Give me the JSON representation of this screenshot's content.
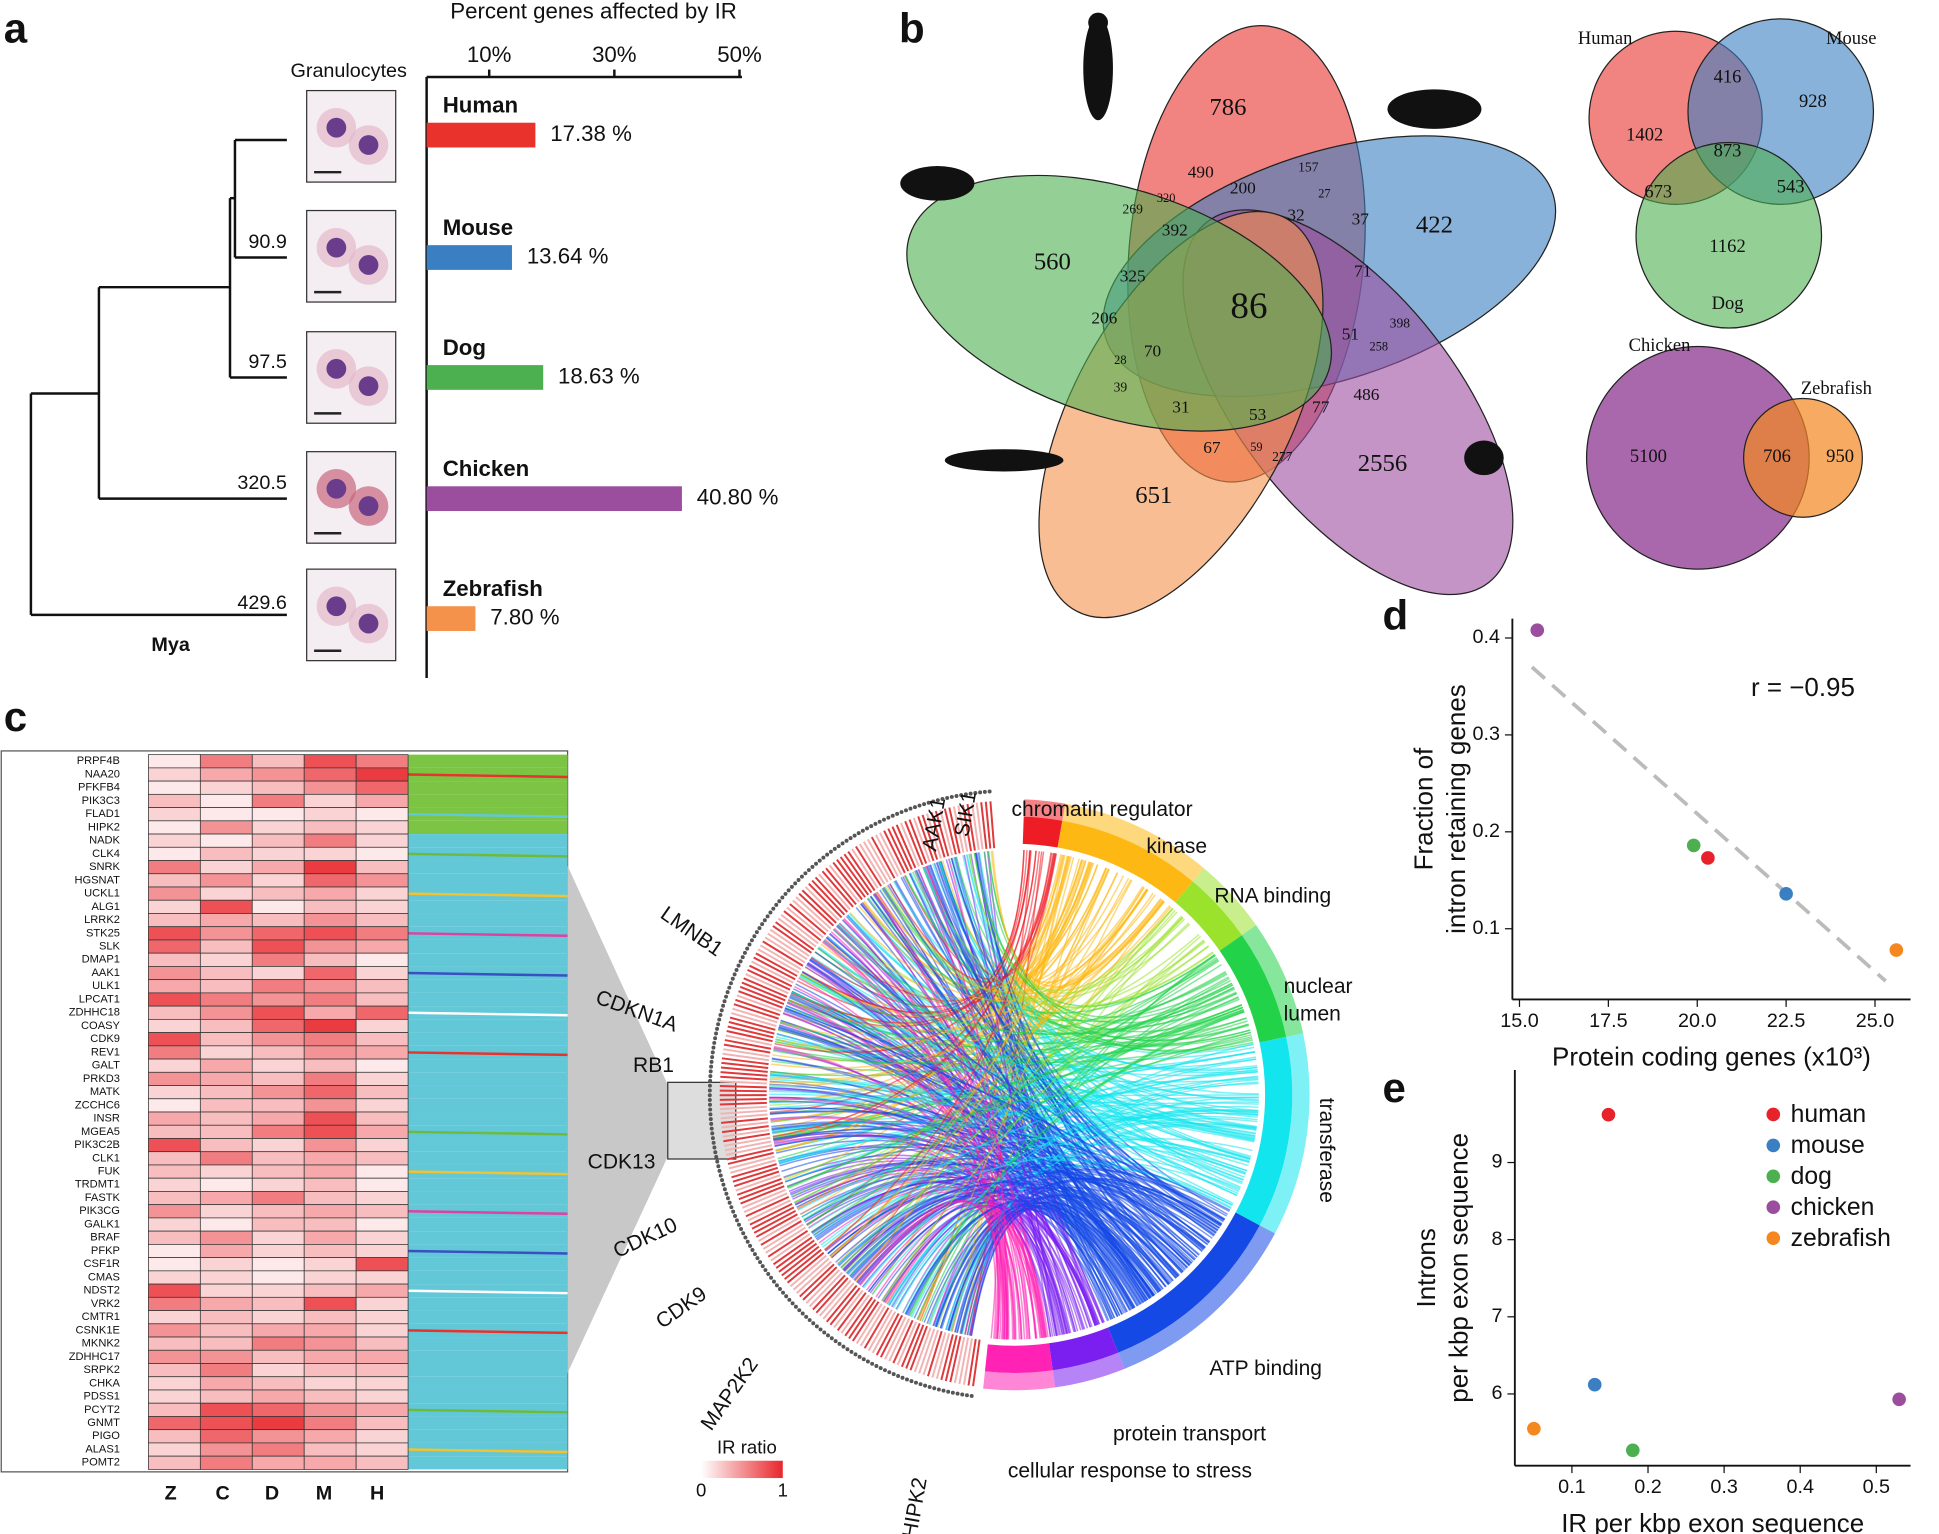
{
  "chart_data": [
    {
      "panel": "a",
      "type": "bar",
      "title": "Percent genes affected by IR",
      "tree_header": "Granulocytes",
      "categories": [
        "Human",
        "Mouse",
        "Dog",
        "Chicken",
        "Zebrafish"
      ],
      "values": [
        17.38,
        13.64,
        18.63,
        40.8,
        7.8
      ],
      "value_labels": [
        "17.38 %",
        "13.64 %",
        "18.63 %",
        "40.80 %",
        "7.80 %"
      ],
      "colors": [
        "#e8322b",
        "#3a7fc1",
        "#4caf50",
        "#9b4d9e",
        "#f4914a"
      ],
      "xlim": [
        0,
        50
      ],
      "xticks": [
        {
          "value": 10,
          "label": "10%"
        },
        {
          "value": 30,
          "label": "30%"
        },
        {
          "value": 50,
          "label": "50%"
        }
      ],
      "node_labels": [
        "90.9",
        "97.5",
        "320.5",
        "429.6"
      ],
      "time_label": "Mya"
    },
    {
      "panel": "b",
      "type": "venn",
      "regions": [
        786,
        490,
        157,
        27,
        200,
        32,
        37,
        422,
        71,
        398,
        258,
        486,
        2556,
        77,
        59,
        277,
        67,
        53,
        651,
        31,
        39,
        28,
        206,
        70,
        325,
        392,
        269,
        320,
        560,
        51,
        86
      ],
      "venn3": {
        "sets": [
          "Human",
          "Mouse",
          "Dog"
        ],
        "regions": [
          1402,
          416,
          928,
          873,
          673,
          543,
          1162
        ]
      },
      "venn2": {
        "sets": [
          "Chicken",
          "Zebrafish"
        ],
        "regions": [
          5100,
          706,
          950
        ]
      }
    },
    {
      "panel": "c",
      "type": "heatmap",
      "genes": [
        "PRPF4B",
        "NAA20",
        "PFKFB4",
        "PIK3C3",
        "FLAD1",
        "HIPK2",
        "NADK",
        "CLK4",
        "SNRK",
        "HGSNAT",
        "UCKL1",
        "ALG1",
        "LRRK2",
        "STK25",
        "SLK",
        "DMAP1",
        "AAK1",
        "ULK1",
        "LPCAT1",
        "ZDHHC18",
        "COASY",
        "CDK9",
        "REV1",
        "GALT",
        "PRKD3",
        "MATK",
        "ZCCHC6",
        "INSR",
        "MGEA5",
        "PIK3C2B",
        "CLK1",
        "FUK",
        "TRDMT1",
        "FASTK",
        "PIK3CG",
        "GALK1",
        "BRAF",
        "PFKP",
        "CSF1R",
        "CMAS",
        "NDST2",
        "VRK2",
        "CMTR1",
        "CSNK1E",
        "MKNK2",
        "ZDHHC17",
        "SRPK2",
        "CHKA",
        "PDSS1",
        "PCYT2",
        "GNMT",
        "PIGO",
        "ALAS1",
        "POMT2"
      ],
      "columns": [
        "Z",
        "C",
        "D",
        "M",
        "H"
      ],
      "values": [
        [
          0.1,
          0.6,
          0.3,
          0.8,
          0.6
        ],
        [
          0.2,
          0.4,
          0.5,
          0.7,
          0.9
        ],
        [
          0.1,
          0.2,
          0.3,
          0.5,
          0.7
        ],
        [
          0.3,
          0.1,
          0.6,
          0.2,
          0.4
        ],
        [
          0.2,
          0.1,
          0.1,
          0.2,
          0.1
        ],
        [
          0.1,
          0.5,
          0.2,
          0.3,
          0.2
        ],
        [
          0.2,
          0.1,
          0.3,
          0.6,
          0.2
        ],
        [
          0.1,
          0.3,
          0.2,
          0.2,
          0.1
        ],
        [
          0.6,
          0.2,
          0.4,
          0.9,
          0.3
        ],
        [
          0.3,
          0.5,
          0.2,
          0.7,
          0.5
        ],
        [
          0.5,
          0.2,
          0.3,
          0.4,
          0.2
        ],
        [
          0.2,
          0.8,
          0.1,
          0.3,
          0.2
        ],
        [
          0.3,
          0.4,
          0.3,
          0.5,
          0.3
        ],
        [
          0.8,
          0.5,
          0.7,
          0.8,
          0.6
        ],
        [
          0.7,
          0.3,
          0.8,
          0.5,
          0.4
        ],
        [
          0.3,
          0.2,
          0.6,
          0.3,
          0.1
        ],
        [
          0.5,
          0.3,
          0.2,
          0.7,
          0.2
        ],
        [
          0.4,
          0.3,
          0.6,
          0.5,
          0.3
        ],
        [
          0.8,
          0.6,
          0.5,
          0.6,
          0.3
        ],
        [
          0.3,
          0.5,
          0.8,
          0.4,
          0.7
        ],
        [
          0.2,
          0.3,
          0.7,
          0.9,
          0.2
        ],
        [
          0.8,
          0.3,
          0.5,
          0.6,
          0.3
        ],
        [
          0.6,
          0.2,
          0.3,
          0.5,
          0.4
        ],
        [
          0.2,
          0.4,
          0.2,
          0.3,
          0.1
        ],
        [
          0.5,
          0.4,
          0.3,
          0.6,
          0.2
        ],
        [
          0.2,
          0.3,
          0.5,
          0.7,
          0.3
        ],
        [
          0.1,
          0.3,
          0.3,
          0.5,
          0.2
        ],
        [
          0.4,
          0.3,
          0.4,
          0.8,
          0.3
        ],
        [
          0.3,
          0.3,
          0.6,
          0.8,
          0.4
        ],
        [
          0.8,
          0.3,
          0.2,
          0.5,
          0.2
        ],
        [
          0.3,
          0.6,
          0.3,
          0.4,
          0.3
        ],
        [
          0.3,
          0.2,
          0.3,
          0.4,
          0.1
        ],
        [
          0.2,
          0.1,
          0.2,
          0.3,
          0.1
        ],
        [
          0.3,
          0.4,
          0.6,
          0.3,
          0.2
        ],
        [
          0.5,
          0.2,
          0.3,
          0.4,
          0.3
        ],
        [
          0.2,
          0.1,
          0.3,
          0.3,
          0.1
        ],
        [
          0.3,
          0.5,
          0.2,
          0.4,
          0.2
        ],
        [
          0.1,
          0.4,
          0.2,
          0.3,
          0.2
        ],
        [
          0.1,
          0.2,
          0.1,
          0.2,
          0.8
        ],
        [
          0.2,
          0.2,
          0.1,
          0.2,
          0.2
        ],
        [
          0.8,
          0.2,
          0.2,
          0.3,
          0.4
        ],
        [
          0.6,
          0.4,
          0.3,
          0.8,
          0.2
        ],
        [
          0.2,
          0.3,
          0.2,
          0.3,
          0.2
        ],
        [
          0.5,
          0.3,
          0.4,
          0.4,
          0.2
        ],
        [
          0.3,
          0.3,
          0.6,
          0.5,
          0.3
        ],
        [
          0.5,
          0.5,
          0.3,
          0.4,
          0.4
        ],
        [
          0.3,
          0.6,
          0.2,
          0.3,
          0.3
        ],
        [
          0.2,
          0.4,
          0.3,
          0.2,
          0.2
        ],
        [
          0.2,
          0.3,
          0.4,
          0.3,
          0.2
        ],
        [
          0.3,
          0.8,
          0.7,
          0.5,
          0.4
        ],
        [
          0.7,
          0.8,
          0.9,
          0.6,
          0.3
        ],
        [
          0.3,
          0.7,
          0.5,
          0.4,
          0.2
        ],
        [
          0.2,
          0.5,
          0.6,
          0.3,
          0.2
        ],
        [
          0.3,
          0.6,
          0.4,
          0.4,
          0.3
        ]
      ],
      "colorbar_title": "IR ratio",
      "colorbar_ticks": [
        0,
        1
      ],
      "chord_categories": [
        "chromatin regulator",
        "kinase",
        "RNA binding",
        "nuclear lumen",
        "transferase",
        "ATP binding",
        "protein transport",
        "cellular response to stress"
      ],
      "chord_genes": [
        "SIK1",
        "AAK1",
        "LMNB1",
        "CDKN1A",
        "RB1",
        "CDK13",
        "CDK10",
        "CDK9",
        "MAP2K2",
        "HIPK2"
      ]
    },
    {
      "panel": "d",
      "type": "scatter",
      "annotation": "r = −0.95",
      "xlabel": "Protein coding genes (x10³)",
      "ylabel": [
        "Fraction of",
        "intron retaining genes"
      ],
      "series": [
        {
          "name": "human",
          "color": "#e8222b",
          "x": [
            20.3
          ],
          "values": [
            0.173
          ]
        },
        {
          "name": "mouse",
          "color": "#3a7fc1",
          "x": [
            22.5
          ],
          "values": [
            0.136
          ]
        },
        {
          "name": "dog",
          "color": "#4caf50",
          "x": [
            19.9
          ],
          "values": [
            0.186
          ]
        },
        {
          "name": "chicken",
          "color": "#9b4d9e",
          "x": [
            15.5
          ],
          "values": [
            0.408
          ]
        },
        {
          "name": "zebrafish",
          "color": "#f4871f",
          "x": [
            25.6
          ],
          "values": [
            0.078
          ]
        }
      ],
      "trend": {
        "x": [
          15.35,
          25.3
        ],
        "values": [
          0.37,
          0.046
        ]
      },
      "xlim": [
        14.8,
        26.0
      ],
      "ylim": [
        0.027,
        0.42
      ],
      "xticks": [
        {
          "value": 15,
          "label": "15.0"
        },
        {
          "value": 17.5,
          "label": "17.5"
        },
        {
          "value": 20,
          "label": "20.0"
        },
        {
          "value": 22.5,
          "label": "22.5"
        },
        {
          "value": 25,
          "label": "25.0"
        }
      ],
      "yticks": [
        0.1,
        0.2,
        0.3,
        0.4
      ]
    },
    {
      "panel": "e",
      "type": "scatter",
      "legend": "top-right",
      "xlabel": "IR per kbp exon sequence",
      "ylabel": [
        "Introns",
        "per kbp exon sequence"
      ],
      "series": [
        {
          "name": "human",
          "color": "#e8222b",
          "x": [
            0.148
          ],
          "values": [
            9.62
          ]
        },
        {
          "name": "mouse",
          "color": "#3a7fc1",
          "x": [
            0.13
          ],
          "values": [
            6.12
          ]
        },
        {
          "name": "dog",
          "color": "#4caf50",
          "x": [
            0.18
          ],
          "values": [
            5.27
          ]
        },
        {
          "name": "chicken",
          "color": "#9b4d9e",
          "x": [
            0.53
          ],
          "values": [
            5.93
          ]
        },
        {
          "name": "zebrafish",
          "color": "#f4871f",
          "x": [
            0.05
          ],
          "values": [
            5.55
          ]
        }
      ],
      "xlim": [
        0.025,
        0.545
      ],
      "ylim": [
        5.07,
        10.2
      ],
      "xticks": [
        0.1,
        0.2,
        0.3,
        0.4,
        0.5
      ],
      "yticks": [
        6,
        7,
        8,
        9
      ]
    }
  ]
}
